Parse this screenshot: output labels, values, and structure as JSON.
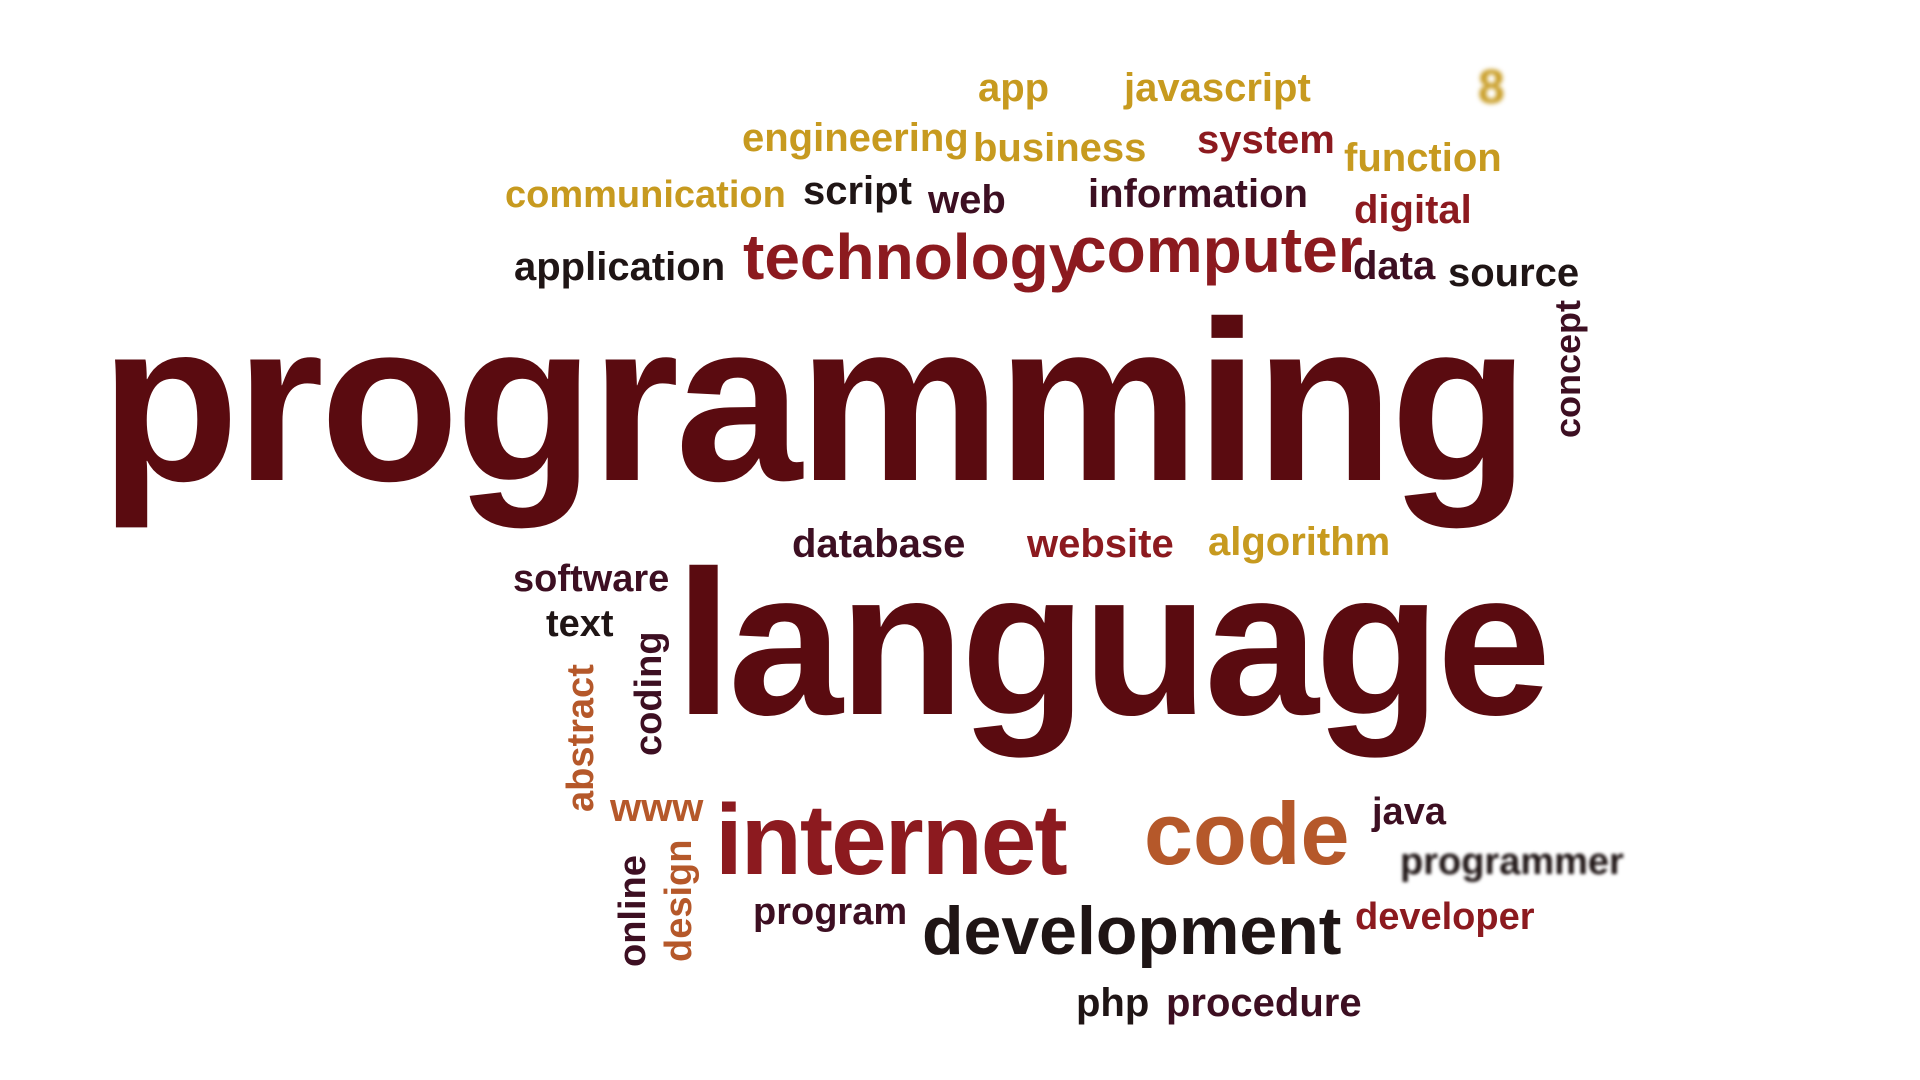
{
  "colors": {
    "background": "#ffffff",
    "maroon": "#5a0b10",
    "crimson": "#8c1a1f",
    "gold": "#c79a1f",
    "orange_brown": "#b5582a",
    "dark_plum": "#3d0f22",
    "near_black": "#1f1515"
  },
  "words": [
    {
      "key": "app",
      "text": "app"
    },
    {
      "key": "javascript",
      "text": "javascript"
    },
    {
      "key": "fragment",
      "text": "8"
    },
    {
      "key": "engineering",
      "text": "engineering"
    },
    {
      "key": "business",
      "text": "business"
    },
    {
      "key": "system",
      "text": "system"
    },
    {
      "key": "function",
      "text": "function"
    },
    {
      "key": "communication",
      "text": "communication"
    },
    {
      "key": "script",
      "text": "script"
    },
    {
      "key": "web",
      "text": "web"
    },
    {
      "key": "information",
      "text": "information"
    },
    {
      "key": "digital",
      "text": "digital"
    },
    {
      "key": "application",
      "text": "application"
    },
    {
      "key": "technology",
      "text": "technology"
    },
    {
      "key": "computer",
      "text": "computer"
    },
    {
      "key": "data",
      "text": "data"
    },
    {
      "key": "source",
      "text": "source"
    },
    {
      "key": "concept",
      "text": "concept"
    },
    {
      "key": "programming",
      "text": "programming"
    },
    {
      "key": "database",
      "text": "database"
    },
    {
      "key": "website",
      "text": "website"
    },
    {
      "key": "algorithm",
      "text": "algorithm"
    },
    {
      "key": "software",
      "text": "software"
    },
    {
      "key": "text",
      "text": "text"
    },
    {
      "key": "coding",
      "text": "coding"
    },
    {
      "key": "abstract",
      "text": "abstract"
    },
    {
      "key": "language",
      "text": "language"
    },
    {
      "key": "www",
      "text": "www"
    },
    {
      "key": "internet",
      "text": "internet"
    },
    {
      "key": "code",
      "text": "code"
    },
    {
      "key": "java",
      "text": "java"
    },
    {
      "key": "programmer",
      "text": "programmer"
    },
    {
      "key": "online",
      "text": "online"
    },
    {
      "key": "design",
      "text": "design"
    },
    {
      "key": "program",
      "text": "program"
    },
    {
      "key": "development",
      "text": "development"
    },
    {
      "key": "developer",
      "text": "developer"
    },
    {
      "key": "php",
      "text": "php"
    },
    {
      "key": "procedure",
      "text": "procedure"
    }
  ]
}
